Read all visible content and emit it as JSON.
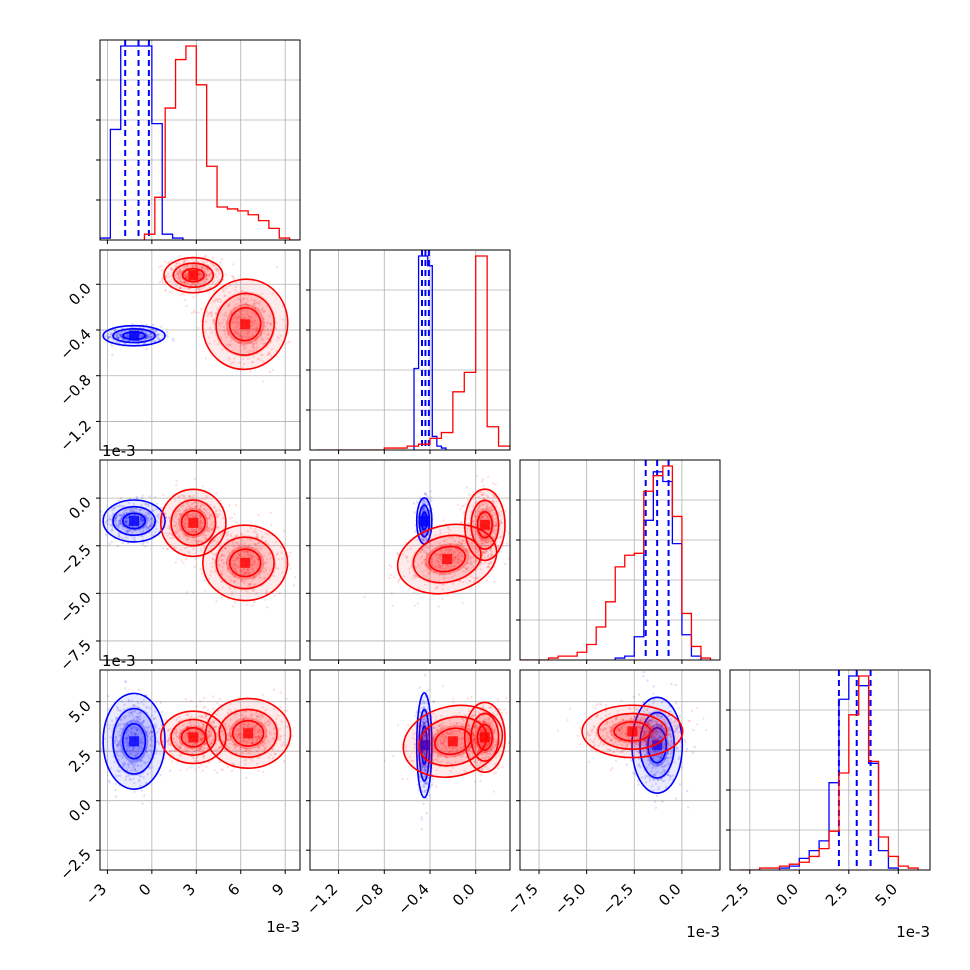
{
  "chart_data": {
    "type": "corner",
    "title": "",
    "offset_labels": {
      "p0": "1e-3",
      "p1": "1e-3",
      "p2": "1e-3",
      "p3": "1e-3"
    },
    "params": [
      {
        "id": "p0",
        "range": [
          -3.5,
          10.0
        ],
        "ticks": [
          -3,
          0,
          3,
          6,
          9
        ],
        "tick_labels": [
          "−3",
          "0",
          "3",
          "6",
          "9"
        ]
      },
      {
        "id": "p1",
        "range": [
          -1.45,
          0.3
        ],
        "ticks": [
          -1.2,
          -0.8,
          -0.4,
          0.0
        ],
        "tick_labels": [
          "−1.2",
          "−0.8",
          "−0.4",
          "0.0"
        ]
      },
      {
        "id": "p2",
        "range": [
          -8.5,
          2.0
        ],
        "ticks": [
          -7.5,
          -5.0,
          -2.5,
          0.0
        ],
        "tick_labels": [
          "−7.5",
          "−5.0",
          "−2.5",
          "0.0"
        ]
      },
      {
        "id": "p3",
        "range": [
          -3.5,
          6.6
        ],
        "ticks": [
          -2.5,
          0.0,
          2.5,
          5.0
        ],
        "tick_labels": [
          "−2.5",
          "0.0",
          "2.5",
          "5.0"
        ]
      }
    ],
    "series": [
      {
        "name": "",
        "color": "#0000ff",
        "quantiles": [
          [
            -1.8,
            -0.9,
            -0.2
          ],
          [
            -0.47,
            -0.44,
            -0.41
          ],
          [
            -1.9,
            -1.3,
            -0.7
          ],
          [
            2.0,
            2.9,
            3.6
          ]
        ],
        "marginals": [
          {
            "edges": [
              -3.5,
              -2.8,
              -2.1,
              -1.4,
              -0.7,
              0.0,
              0.7,
              1.4,
              2.1
            ],
            "counts": [
              0.01,
              0.57,
              1.0,
              1.0,
              1.0,
              0.6,
              0.03,
              0.01
            ]
          },
          {
            "edges": [
              -0.54,
              -0.5,
              -0.46,
              -0.42,
              -0.38,
              -0.34,
              -0.3,
              -0.26
            ],
            "counts": [
              0.42,
              1.0,
              1.0,
              0.95,
              0.07,
              0.02,
              0.01
            ]
          },
          {
            "edges": [
              -3.5,
              -3.0,
              -2.5,
              -2.0,
              -1.5,
              -1.0,
              -0.5,
              0.0,
              0.5,
              1.0
            ],
            "counts": [
              0.01,
              0.02,
              0.12,
              0.72,
              0.97,
              0.92,
              0.6,
              0.13,
              0.02
            ]
          },
          {
            "edges": [
              -1.0,
              -0.5,
              0.0,
              0.5,
              1.0,
              1.5,
              2.0,
              2.5,
              3.0,
              3.5,
              4.0,
              4.5,
              5.0
            ],
            "counts": [
              0.01,
              0.02,
              0.06,
              0.1,
              0.15,
              0.45,
              0.88,
              1.0,
              0.95,
              0.55,
              0.1,
              0.01
            ]
          }
        ],
        "blobs": [
          {
            "pair": [
              0,
              1
            ],
            "center": [
              -1.2,
              -0.45
            ],
            "sd": [
              0.95,
              0.04
            ],
            "rho": 0.0
          },
          {
            "pair": [
              0,
              2
            ],
            "center": [
              -1.2,
              -1.2
            ],
            "sd": [
              0.95,
              0.5
            ],
            "rho": 0.0
          },
          {
            "pair": [
              1,
              2
            ],
            "center": [
              -0.45,
              -1.2
            ],
            "sd": [
              0.03,
              0.55
            ],
            "rho": 0.0
          },
          {
            "pair": [
              0,
              3
            ],
            "center": [
              -1.2,
              3.0
            ],
            "sd": [
              0.95,
              1.1
            ],
            "rho": 0.0
          },
          {
            "pair": [
              1,
              3
            ],
            "center": [
              -0.45,
              2.8
            ],
            "sd": [
              0.03,
              1.2
            ],
            "rho": 0.0
          },
          {
            "pair": [
              2,
              3
            ],
            "center": [
              -1.3,
              2.8
            ],
            "sd": [
              0.6,
              1.1
            ],
            "rho": 0.0
          }
        ]
      },
      {
        "name": "",
        "color": "#ff0000",
        "marginals": [
          {
            "edges": [
              -0.5,
              0.2,
              0.9,
              1.6,
              2.3,
              3.0,
              3.7,
              4.4,
              5.1,
              5.8,
              6.5,
              7.2,
              7.9,
              8.6,
              9.3,
              10.0
            ],
            "counts": [
              0.03,
              0.22,
              0.68,
              0.93,
              1.0,
              0.8,
              0.38,
              0.17,
              0.16,
              0.15,
              0.13,
              0.1,
              0.06,
              0.01,
              0.0
            ]
          },
          {
            "edges": [
              -1.4,
              -1.3,
              -1.2,
              -1.1,
              -1.0,
              -0.9,
              -0.8,
              -0.7,
              -0.6,
              -0.5,
              -0.4,
              -0.3,
              -0.2,
              -0.1,
              0.0,
              0.1,
              0.2,
              0.3
            ],
            "counts": [
              0.0,
              0.0,
              0.0,
              0.0,
              0.0,
              0.0,
              0.01,
              0.01,
              0.02,
              0.03,
              0.06,
              0.09,
              0.3,
              0.4,
              1.0,
              0.12,
              0.02
            ]
          },
          {
            "edges": [
              -8.5,
              -8.0,
              -7.5,
              -7.0,
              -6.5,
              -6.0,
              -5.5,
              -5.0,
              -4.5,
              -4.0,
              -3.5,
              -3.0,
              -2.5,
              -2.0,
              -1.5,
              -1.0,
              -0.5,
              0.0,
              0.5,
              1.0,
              1.5
            ],
            "counts": [
              0.0,
              0.0,
              0.0,
              0.01,
              0.02,
              0.02,
              0.04,
              0.08,
              0.17,
              0.3,
              0.48,
              0.54,
              0.55,
              0.87,
              0.95,
              1.0,
              0.74,
              0.24,
              0.07,
              0.01
            ]
          },
          {
            "edges": [
              -3.0,
              -2.0,
              -1.5,
              -1.0,
              -0.5,
              0.0,
              0.5,
              1.0,
              1.5,
              2.0,
              2.5,
              3.0,
              3.5,
              4.0,
              4.5,
              5.0,
              5.5,
              6.0
            ],
            "counts": [
              0.0,
              0.01,
              0.01,
              0.02,
              0.03,
              0.04,
              0.07,
              0.11,
              0.2,
              0.5,
              0.8,
              1.0,
              0.56,
              0.17,
              0.07,
              0.02,
              0.01
            ]
          }
        ],
        "blobs": [
          {
            "pair": [
              0,
              1
            ],
            "center": [
              2.8,
              0.08
            ],
            "sd": [
              0.9,
              0.07
            ],
            "rho": 0.0
          },
          {
            "pair": [
              0,
              1
            ],
            "center": [
              6.3,
              -0.35
            ],
            "sd": [
              1.3,
              0.18
            ],
            "rho": -0.3
          },
          {
            "pair": [
              0,
              2
            ],
            "center": [
              2.8,
              -1.3
            ],
            "sd": [
              1.0,
              0.8
            ],
            "rho": 0.0
          },
          {
            "pair": [
              0,
              2
            ],
            "center": [
              6.3,
              -3.4
            ],
            "sd": [
              1.3,
              0.9
            ],
            "rho": 0.0
          },
          {
            "pair": [
              1,
              2
            ],
            "center": [
              0.08,
              -1.4
            ],
            "sd": [
              0.08,
              0.85
            ],
            "rho": 0.0
          },
          {
            "pair": [
              1,
              2
            ],
            "center": [
              -0.25,
              -3.2
            ],
            "sd": [
              0.2,
              0.8
            ],
            "rho": 0.3
          },
          {
            "pair": [
              0,
              3
            ],
            "center": [
              2.8,
              3.2
            ],
            "sd": [
              1.0,
              0.6
            ],
            "rho": 0.0
          },
          {
            "pair": [
              0,
              3
            ],
            "center": [
              6.5,
              3.4
            ],
            "sd": [
              1.3,
              0.8
            ],
            "rho": 0.0
          },
          {
            "pair": [
              1,
              3
            ],
            "center": [
              0.08,
              3.2
            ],
            "sd": [
              0.08,
              0.8
            ],
            "rho": 0.0
          },
          {
            "pair": [
              1,
              3
            ],
            "center": [
              -0.2,
              3.0
            ],
            "sd": [
              0.2,
              0.8
            ],
            "rho": 0.3
          },
          {
            "pair": [
              2,
              3
            ],
            "center": [
              -2.6,
              3.5
            ],
            "sd": [
              1.2,
              0.6
            ],
            "rho": 0.0
          }
        ]
      }
    ]
  }
}
